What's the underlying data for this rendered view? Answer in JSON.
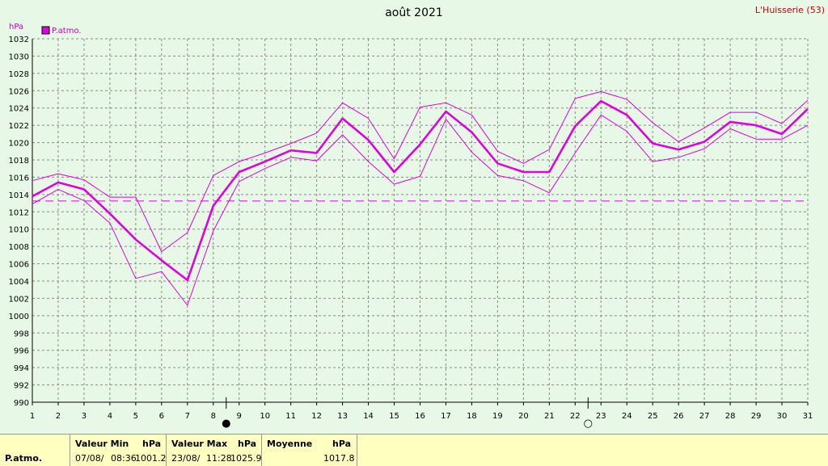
{
  "chart_data": {
    "type": "line",
    "title": "août 2021",
    "location": "L'Huisserie (53)",
    "ylabel": "hPa",
    "ylim": [
      990,
      1032
    ],
    "y_ticks": [
      990,
      992,
      994,
      996,
      998,
      1000,
      1002,
      1004,
      1006,
      1008,
      1010,
      1012,
      1014,
      1016,
      1018,
      1020,
      1022,
      1024,
      1026,
      1028,
      1030,
      1032
    ],
    "x": [
      1,
      2,
      3,
      4,
      5,
      6,
      7,
      8,
      9,
      10,
      11,
      12,
      13,
      14,
      15,
      16,
      17,
      18,
      19,
      20,
      21,
      22,
      23,
      24,
      25,
      26,
      27,
      28,
      29,
      30,
      31
    ],
    "xlim": [
      1,
      31
    ],
    "grid": true,
    "legend_position": "top-left",
    "series": [
      {
        "name": "P.atmo.",
        "role": "mean",
        "color": "#e000e0",
        "values": [
          1013.8,
          1015.4,
          1014.6,
          1011.8,
          1008.8,
          1006.4,
          1004.1,
          1012.7,
          1016.6,
          1017.8,
          1019.1,
          1018.8,
          1022.8,
          1020.3,
          1016.6,
          1019.8,
          1023.6,
          1021.2,
          1017.6,
          1016.6,
          1016.6,
          1021.9,
          1024.8,
          1023.2,
          1019.9,
          1019.2,
          1020.1,
          1022.4,
          1022.0,
          1021.0,
          1023.9
        ]
      },
      {
        "role": "max",
        "color": "#e000e0",
        "values": [
          1015.6,
          1016.4,
          1015.7,
          1013.7,
          1013.7,
          1007.4,
          1009.6,
          1016.2,
          1017.8,
          1018.8,
          1019.9,
          1021.1,
          1024.6,
          1022.8,
          1018.1,
          1024.1,
          1024.6,
          1023.2,
          1019.0,
          1017.6,
          1019.2,
          1025.1,
          1025.9,
          1025.0,
          1022.3,
          1020.1,
          1021.7,
          1023.5,
          1023.5,
          1022.2,
          1024.9
        ]
      },
      {
        "role": "min",
        "color": "#e000e0",
        "values": [
          1012.9,
          1014.6,
          1013.3,
          1010.7,
          1004.3,
          1005.1,
          1001.2,
          1009.8,
          1015.5,
          1017.0,
          1018.3,
          1017.9,
          1020.9,
          1017.8,
          1015.2,
          1016.1,
          1022.7,
          1018.9,
          1016.2,
          1015.6,
          1014.2,
          1018.8,
          1023.2,
          1021.3,
          1017.8,
          1018.3,
          1019.3,
          1021.6,
          1020.4,
          1020.4,
          1022.0
        ]
      }
    ],
    "reference_line": {
      "value": 1013.25,
      "style": "dashed",
      "color": "#e000e0"
    },
    "moon_phases": [
      {
        "day": 8.5,
        "phase": "new",
        "glyph": "●"
      },
      {
        "day": 22.5,
        "phase": "full",
        "glyph": "○"
      }
    ]
  },
  "footer": {
    "row_label": "P.atmo.",
    "min": {
      "header": "Valeur Min",
      "unit": "hPa",
      "date": "07/08/",
      "time": "08:36",
      "value": "1001.2"
    },
    "max": {
      "header": "Valeur Max",
      "unit": "hPa",
      "date": "23/08/",
      "time": "11:28",
      "value": "1025.9"
    },
    "mean": {
      "header": "Moyenne",
      "unit": "hPa",
      "value": "1017.8"
    }
  },
  "colors": {
    "background": "#e7f8e7",
    "series": "#e000e0",
    "footer": "#ffffc0",
    "location": "#d00000"
  }
}
